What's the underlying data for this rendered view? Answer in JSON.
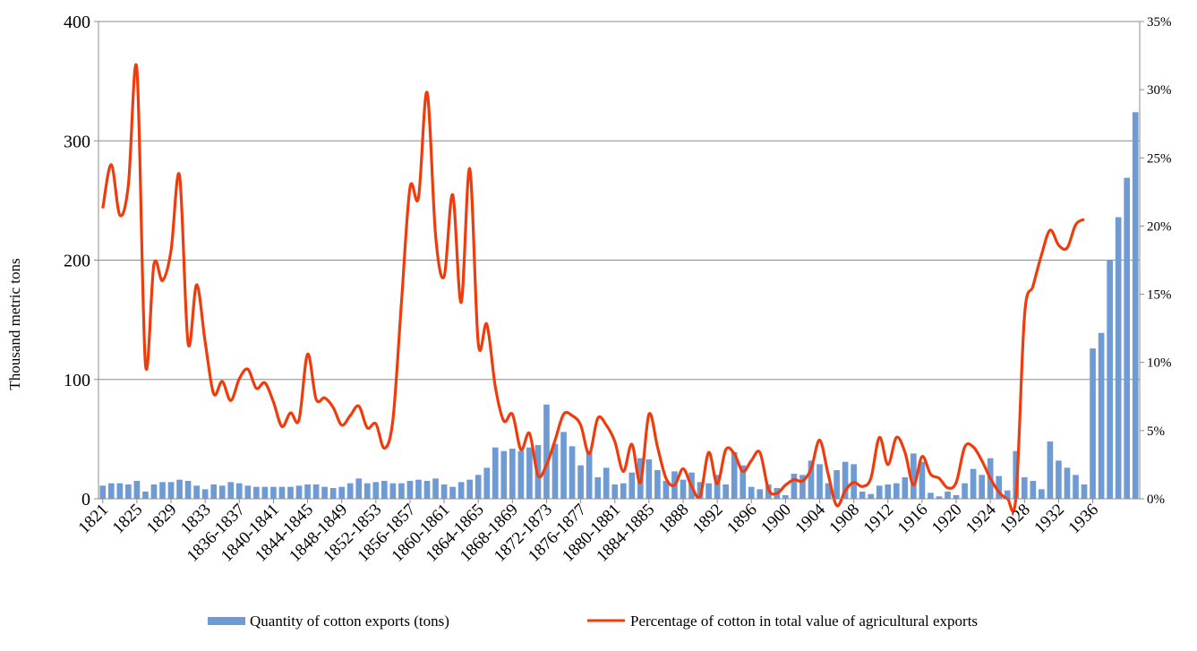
{
  "chart_data": {
    "type": "bar+line",
    "title": "",
    "ylabel_left": "Thousand metric tons",
    "ylim_left": [
      0,
      400
    ],
    "yticks_left": [
      "0",
      "100",
      "200",
      "300",
      "400"
    ],
    "ylim_right": [
      0,
      35
    ],
    "yticks_right": [
      "0%",
      "5%",
      "10%",
      "15%",
      "20%",
      "25%",
      "30%",
      "35%"
    ],
    "grid": "horizontal",
    "legend_position": "bottom",
    "x_labels": [
      "1821",
      "1825",
      "1829",
      "1833",
      "1836-1837",
      "1840-1841",
      "1844-1845",
      "1848-1849",
      "1852-1853",
      "1856-1857",
      "1860-1861",
      "1864-1865",
      "1868-1869",
      "1872-1873",
      "1876-1877",
      "1880-1881",
      "1884-1885",
      "1888",
      "1892",
      "1896",
      "1900",
      "1904",
      "1908",
      "1912",
      "1916",
      "1920",
      "1924",
      "1928",
      "1932",
      "1936"
    ],
    "series": [
      {
        "name": "Quantity of cotton exports (tons)",
        "kind": "bar",
        "axis": "left",
        "color": "#6f9bd4",
        "values": [
          11,
          13,
          13,
          12,
          15,
          6,
          12,
          14,
          14,
          16,
          15,
          11,
          8,
          12,
          11,
          14,
          13,
          11,
          10,
          10,
          10,
          10,
          10,
          11,
          12,
          12,
          10,
          9,
          10,
          13,
          17,
          13,
          14,
          15,
          13,
          13,
          15,
          16,
          15,
          17,
          12,
          10,
          14,
          16,
          20,
          26,
          43,
          40,
          42,
          40,
          43,
          45,
          79,
          46,
          56,
          44,
          28,
          40,
          18,
          26,
          12,
          13,
          22,
          34,
          33,
          24,
          15,
          23,
          16,
          22,
          14,
          13,
          20,
          12,
          39,
          28,
          10,
          8,
          12,
          9,
          3,
          21,
          20,
          32,
          29,
          13,
          24,
          31,
          29,
          6,
          4,
          11,
          12,
          13,
          18,
          38,
          31,
          5,
          2,
          6,
          3,
          13,
          25,
          20,
          34,
          19,
          7,
          40,
          18,
          15,
          8,
          48,
          32,
          26,
          20,
          12,
          126,
          139,
          200,
          236,
          269,
          324
        ]
      },
      {
        "name": "Percentage of cotton in total value of agricultural exports",
        "kind": "line",
        "axis": "right",
        "color": "#f03c0c",
        "values": [
          21.3,
          24.5,
          20.8,
          23.0,
          31.5,
          9.9,
          17.2,
          16.0,
          18.2,
          23.7,
          11.4,
          15.7,
          11.5,
          7.7,
          8.6,
          7.2,
          8.8,
          9.5,
          8.1,
          8.5,
          7.1,
          5.3,
          6.3,
          5.8,
          10.6,
          7.3,
          7.4,
          6.7,
          5.4,
          6.1,
          6.8,
          5.2,
          5.5,
          3.7,
          5.8,
          14.4,
          22.8,
          22.1,
          29.8,
          19.3,
          16.3,
          22.3,
          14.4,
          24.2,
          11.4,
          12.8,
          8.2,
          5.7,
          6.2,
          3.6,
          4.8,
          1.7,
          2.5,
          4.3,
          6.2,
          6.1,
          5.4,
          3.3,
          5.9,
          5.4,
          4.2,
          2.0,
          4.0,
          1.2,
          6.2,
          3.8,
          1.5,
          1.0,
          2.2,
          0.9,
          0.2,
          3.4,
          1.1,
          3.6,
          3.3,
          2.0,
          2.8,
          3.4,
          0.7,
          0.4,
          1.0,
          1.4,
          1.3,
          2.2,
          4.3,
          1.8,
          -0.5,
          0.6,
          1.2,
          0.9,
          1.5,
          4.5,
          2.5,
          4.5,
          3.4,
          1.0,
          3.1,
          1.8,
          1.5,
          0.8,
          1.2,
          3.8,
          3.8,
          2.8,
          1.5,
          0.5,
          0,
          0.1,
          13.4,
          15.6,
          17.9,
          19.7,
          18.6,
          18.4,
          20.1,
          20.5
        ]
      }
    ]
  }
}
